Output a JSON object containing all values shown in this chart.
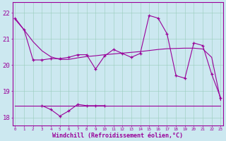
{
  "xlabel": "Windchill (Refroidissement éolien,°C)",
  "bg_color": "#cce8f0",
  "line_color": "#990099",
  "hours": [
    0,
    1,
    2,
    3,
    4,
    5,
    6,
    7,
    8,
    9,
    10,
    11,
    12,
    13,
    14,
    15,
    16,
    17,
    18,
    19,
    20,
    21,
    22,
    23
  ],
  "temp_line": [
    21.8,
    21.35,
    20.2,
    20.2,
    20.25,
    20.25,
    20.3,
    20.4,
    20.4,
    19.85,
    20.35,
    20.6,
    20.45,
    20.3,
    20.45,
    21.9,
    21.8,
    21.2,
    19.6,
    19.5,
    20.85,
    20.75,
    19.65,
    18.75
  ],
  "windchill_line": [
    null,
    null,
    null,
    18.45,
    18.3,
    18.05,
    18.25,
    18.5,
    18.45,
    18.45,
    18.45,
    null,
    null,
    null,
    null,
    null,
    null,
    null,
    null,
    null,
    null,
    null,
    null,
    null
  ],
  "smooth_line1": [
    21.75,
    21.35,
    20.9,
    20.55,
    20.32,
    20.22,
    20.22,
    20.28,
    20.33,
    20.36,
    20.4,
    20.43,
    20.46,
    20.49,
    20.52,
    20.56,
    20.6,
    20.63,
    20.64,
    20.65,
    20.65,
    20.62,
    20.3,
    18.65
  ],
  "flat_line_x": [
    0,
    23
  ],
  "flat_line_y": [
    18.45,
    18.45
  ],
  "ylim": [
    17.7,
    22.4
  ],
  "yticks": [
    18,
    19,
    20,
    21,
    22
  ],
  "xlim": [
    -0.3,
    23.3
  ]
}
